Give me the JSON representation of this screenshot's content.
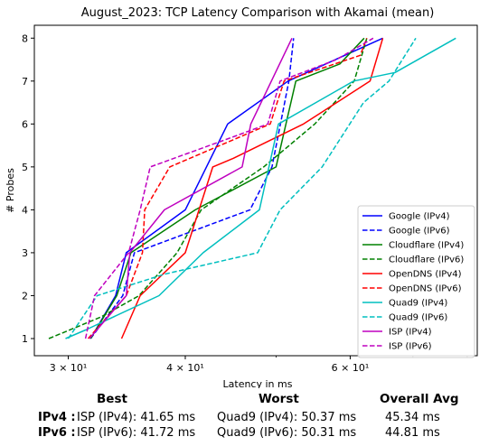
{
  "chart_data": {
    "type": "line",
    "title": "August_2023: TCP Latency Comparison with Akamai (mean)",
    "xlabel": "Latency in ms",
    "ylabel": "# Probes",
    "xscale": "log",
    "xlim": [
      27.6,
      82
    ],
    "ylim": [
      0.6,
      8.3
    ],
    "xticks": [
      {
        "value": 30,
        "label": "3 × 10¹"
      },
      {
        "value": 40,
        "label": "4 × 10¹"
      },
      {
        "value": 60,
        "label": "6 × 10¹"
      }
    ],
    "yticks": [
      1,
      2,
      3,
      4,
      5,
      6,
      7,
      8
    ],
    "legend_position": "lower-right",
    "grid": false,
    "series": [
      {
        "name": "Google (IPv4)",
        "color": "#0000ff",
        "dash": "solid",
        "x": [
          31.7,
          33.7,
          34.6,
          40.0,
          44.4,
          51.5,
          59.2,
          65.0
        ],
        "y": [
          1,
          2,
          3,
          4,
          6,
          7,
          7.6,
          8
        ]
      },
      {
        "name": "Google (IPv6)",
        "color": "#0000ff",
        "dash": "dashed",
        "x": [
          31.7,
          34.3,
          35.3,
          46.9,
          49.5,
          51.6,
          52.2
        ],
        "y": [
          1,
          2,
          3,
          4,
          5,
          7,
          8
        ]
      },
      {
        "name": "Cloudflare (IPv4)",
        "color": "#008000",
        "dash": "solid",
        "x": [
          31.7,
          33.8,
          35.0,
          41.0,
          50.0,
          52.5,
          58.5,
          62.1
        ],
        "y": [
          1,
          2,
          3,
          4,
          5,
          7,
          7.4,
          8
        ]
      },
      {
        "name": "Cloudflare (IPv6)",
        "color": "#008000",
        "dash": "dashed",
        "x": [
          28.6,
          32.5,
          35.7,
          39.2,
          41.6,
          48.5,
          55.0,
          60.6,
          62.5
        ],
        "y": [
          1,
          1.5,
          2,
          3,
          4,
          5,
          6,
          7,
          8
        ]
      },
      {
        "name": "OpenDNS (IPv4)",
        "color": "#ff0000",
        "dash": "solid",
        "x": [
          34.2,
          35.8,
          40.0,
          42.8,
          45.0,
          53.5,
          63.0,
          65.0
        ],
        "y": [
          1,
          2,
          3,
          5,
          5.2,
          6,
          7,
          8
        ]
      },
      {
        "name": "OpenDNS (IPv6)",
        "color": "#ff0000",
        "dash": "dashed",
        "x": [
          31.5,
          34.6,
          36.0,
          36.2,
          38.5,
          49.3,
          51.0,
          61.5,
          62.5
        ],
        "y": [
          1,
          2,
          3,
          4,
          5,
          6,
          7,
          7.6,
          8
        ]
      },
      {
        "name": "Quad9 (IPv4)",
        "color": "#00bfbf",
        "dash": "solid",
        "x": [
          29.8,
          31.3,
          37.5,
          41.8,
          48.0,
          50.3,
          60.5,
          67.0,
          77.8
        ],
        "y": [
          1,
          1.2,
          2,
          3,
          4,
          6,
          7,
          7.2,
          8
        ]
      },
      {
        "name": "Quad9 (IPv6)",
        "color": "#00bfbf",
        "dash": "dashed",
        "x": [
          30.0,
          32.2,
          38.0,
          47.8,
          50.5,
          56.0,
          62.0,
          66.0,
          70.5
        ],
        "y": [
          1,
          2,
          2.5,
          3,
          4,
          5,
          6.5,
          7,
          8
        ]
      },
      {
        "name": "ISP (IPv4)",
        "color": "#bf00bf",
        "dash": "solid",
        "x": [
          31.6,
          34.6,
          34.9,
          38.0,
          46.0,
          47.0,
          52.0
        ],
        "y": [
          1,
          2,
          3,
          4,
          5,
          6,
          8
        ]
      },
      {
        "name": "ISP (IPv6)",
        "color": "#bf00bf",
        "dash": "dashed",
        "x": [
          31.3,
          32.0,
          34.8,
          35.8,
          36.7,
          45.0,
          49.0,
          50.5,
          58.0,
          63.5
        ],
        "y": [
          1,
          2,
          3,
          4,
          5,
          5.7,
          6,
          7,
          7.5,
          8
        ]
      }
    ]
  },
  "stats": {
    "headers": {
      "best": "Best",
      "worst": "Worst",
      "avg": "Overall Avg"
    },
    "rows": [
      {
        "label": "IPv4 :",
        "best": "ISP (IPv4): 41.65 ms",
        "worst": "Quad9 (IPv4): 50.37 ms",
        "avg": "45.34 ms"
      },
      {
        "label": "IPv6 :",
        "best": "ISP (IPv6): 41.72 ms",
        "worst": "Quad9 (IPv6): 50.31 ms",
        "avg": "44.81 ms"
      }
    ]
  }
}
